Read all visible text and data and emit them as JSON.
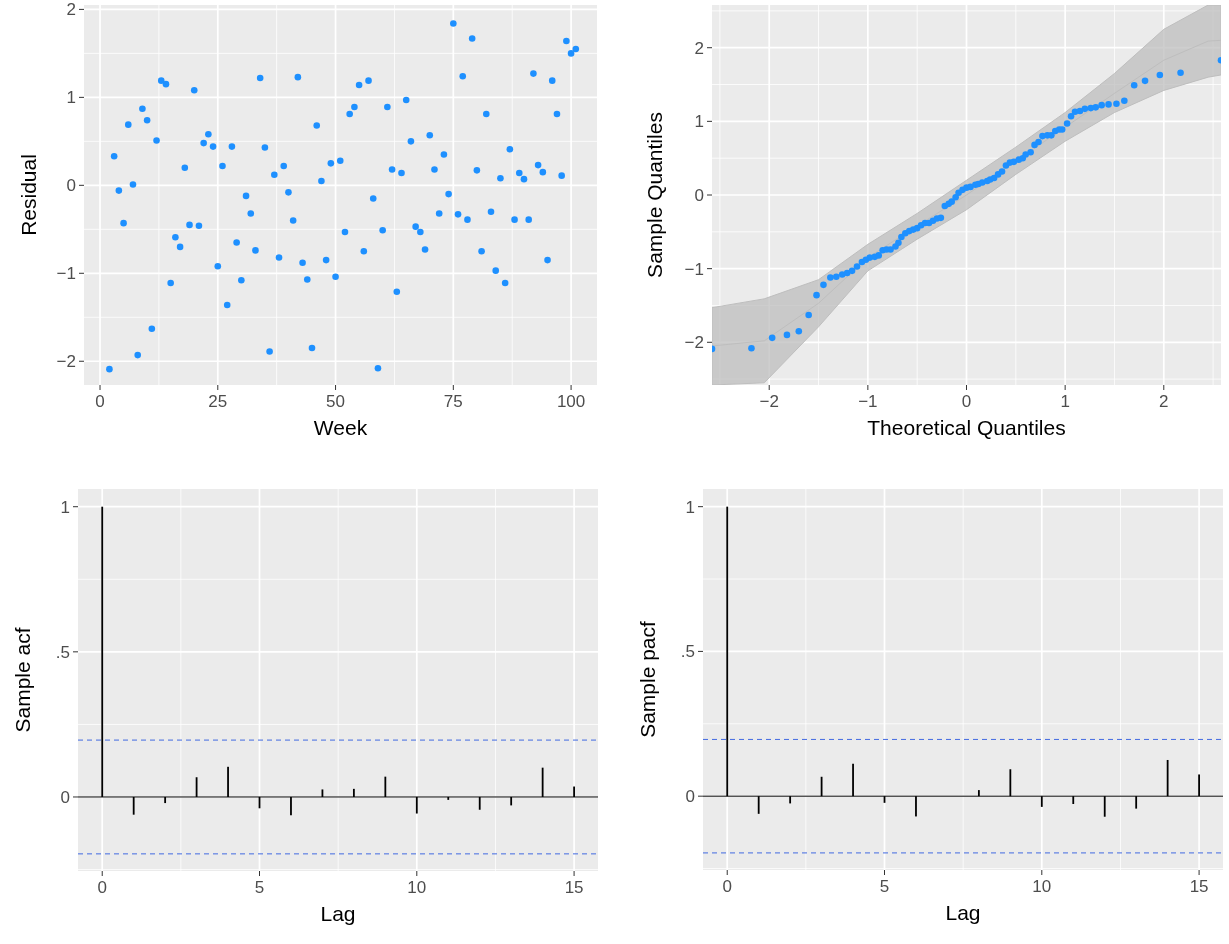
{
  "chart_data": [
    {
      "type": "scatter",
      "xlabel": "Week",
      "ylabel": "Residual",
      "xlim": [
        -3.4,
        105.5
      ],
      "ylim": [
        -2.27,
        2.05
      ],
      "xticks": [
        0,
        25,
        50,
        75,
        100
      ],
      "yticks": [
        {
          "value": -2,
          "label": "−2"
        },
        {
          "value": -1,
          "label": "−1"
        },
        0,
        1,
        2
      ],
      "grid": true,
      "marker": "circle",
      "color": "#1e90ff",
      "x": [
        2,
        3,
        4,
        5,
        6,
        7,
        8,
        9,
        10,
        11,
        12,
        13,
        14,
        15,
        16,
        17,
        18,
        19,
        20,
        21,
        22,
        23,
        24,
        25,
        26,
        27,
        28,
        29,
        30,
        31,
        32,
        33,
        34,
        35,
        36,
        37,
        38,
        39,
        40,
        41,
        42,
        43,
        44,
        45,
        46,
        47,
        48,
        49,
        50,
        51,
        52,
        53,
        54,
        55,
        56,
        57,
        58,
        59,
        60,
        61,
        62,
        63,
        64,
        65,
        66,
        67,
        68,
        69,
        70,
        71,
        72,
        73,
        74,
        75,
        76,
        77,
        78,
        79,
        80,
        81,
        82,
        83,
        84,
        85,
        86,
        87,
        88,
        89,
        90,
        91,
        92,
        93,
        94,
        95,
        96,
        97,
        98,
        99,
        100,
        101
      ],
      "values": [
        -2.09,
        0.33,
        -0.06,
        -0.43,
        0.69,
        0.01,
        -1.93,
        0.87,
        0.74,
        -1.63,
        0.51,
        1.19,
        1.15,
        -1.11,
        -0.59,
        -0.7,
        0.2,
        -0.45,
        1.08,
        -0.46,
        0.48,
        0.58,
        0.44,
        -0.92,
        0.22,
        -1.36,
        0.44,
        -0.65,
        -1.08,
        -0.12,
        -0.32,
        -0.74,
        1.22,
        0.43,
        -1.89,
        0.12,
        -0.82,
        0.22,
        -0.08,
        -0.4,
        1.23,
        -0.88,
        -1.07,
        -1.85,
        0.68,
        0.05,
        -0.85,
        0.25,
        -1.04,
        0.28,
        -0.53,
        0.81,
        0.89,
        1.14,
        -0.75,
        1.19,
        -0.15,
        -2.08,
        -0.51,
        0.89,
        0.18,
        -1.21,
        0.14,
        0.97,
        0.5,
        -0.47,
        -0.53,
        -0.73,
        0.57,
        0.18,
        -0.32,
        0.35,
        -0.1,
        1.84,
        -0.33,
        1.24,
        -0.39,
        1.67,
        0.17,
        -0.75,
        0.81,
        -0.3,
        -0.97,
        0.08,
        -1.11,
        0.41,
        -0.39,
        0.14,
        0.07,
        -0.39,
        1.27,
        0.23,
        0.15,
        -0.85,
        1.19,
        0.81,
        0.11,
        1.64,
        1.5,
        1.55
      ]
    },
    {
      "type": "scatter",
      "xlabel": "Theoretical Quantiles",
      "ylabel": "Sample Quantiles",
      "xlim": [
        -2.58,
        2.58
      ],
      "ylim": [
        -2.58,
        2.58
      ],
      "xticks": [
        {
          "value": -2,
          "label": "−2"
        },
        {
          "value": -1,
          "label": "−1"
        },
        0,
        1,
        2
      ],
      "yticks": [
        {
          "value": -2,
          "label": "−2"
        },
        {
          "value": -1,
          "label": "−1"
        },
        0,
        1,
        2
      ],
      "grid": true,
      "marker": "circle",
      "series": [
        {
          "type": "line",
          "marker": "none",
          "color": "#bebebe",
          "x": [
            -2.58,
            -2.05,
            -1.5,
            -1,
            -0.5,
            0,
            0.5,
            1,
            1.5,
            2,
            2.45,
            2.58
          ],
          "values": [
            -2.05,
            -1.98,
            -1.47,
            -0.85,
            -0.42,
            0,
            0.46,
            0.92,
            1.38,
            1.83,
            2.09,
            2.1
          ],
          "lower": [
            -2.58,
            -2.55,
            -1.79,
            -1.03,
            -0.6,
            -0.2,
            0.28,
            0.73,
            1.12,
            1.42,
            1.6,
            1.63
          ],
          "upper": [
            -1.53,
            -1.41,
            -1.15,
            -0.67,
            -0.25,
            0.2,
            0.65,
            1.12,
            1.65,
            2.25,
            2.58,
            2.58
          ]
        },
        {
          "color": "#1e90ff",
          "x": [
            -2.58,
            -2.18,
            -1.97,
            -1.82,
            -1.7,
            -1.6,
            -1.52,
            -1.45,
            -1.38,
            -1.32,
            -1.26,
            -1.21,
            -1.16,
            -1.11,
            -1.06,
            -1.02,
            -0.98,
            -0.93,
            -0.89,
            -0.85,
            -0.81,
            -0.77,
            -0.72,
            -0.69,
            -0.66,
            -0.62,
            -0.58,
            -0.54,
            -0.5,
            -0.46,
            -0.42,
            -0.38,
            -0.34,
            -0.3,
            -0.26,
            -0.22,
            -0.18,
            -0.15,
            -0.11,
            -0.08,
            -0.04,
            0,
            0.04,
            0.09,
            0.12,
            0.16,
            0.21,
            0.24,
            0.28,
            0.32,
            0.36,
            0.4,
            0.44,
            0.48,
            0.53,
            0.57,
            0.6,
            0.65,
            0.69,
            0.73,
            0.77,
            0.82,
            0.86,
            0.9,
            0.94,
            0.97,
            1.02,
            1.06,
            1.1,
            1.15,
            1.2,
            1.26,
            1.31,
            1.37,
            1.44,
            1.52,
            1.6,
            1.7,
            1.81,
            1.96,
            2.17,
            2.58
          ],
          "values": [
            -2.09,
            -2.08,
            -1.94,
            -1.9,
            -1.85,
            -1.63,
            -1.36,
            -1.22,
            -1.12,
            -1.11,
            -1.08,
            -1.06,
            -1.03,
            -0.97,
            -0.91,
            -0.88,
            -0.85,
            -0.84,
            -0.82,
            -0.75,
            -0.74,
            -0.74,
            -0.7,
            -0.65,
            -0.57,
            -0.52,
            -0.49,
            -0.47,
            -0.45,
            -0.41,
            -0.38,
            -0.38,
            -0.35,
            -0.32,
            -0.31,
            -0.15,
            -0.12,
            -0.09,
            -0.03,
            0.03,
            0.07,
            0.1,
            0.11,
            0.14,
            0.15,
            0.17,
            0.19,
            0.21,
            0.23,
            0.28,
            0.32,
            0.4,
            0.44,
            0.45,
            0.48,
            0.5,
            0.55,
            0.58,
            0.68,
            0.72,
            0.8,
            0.81,
            0.81,
            0.87,
            0.89,
            0.89,
            0.97,
            1.07,
            1.13,
            1.14,
            1.17,
            1.18,
            1.19,
            1.22,
            1.23,
            1.24,
            1.28,
            1.49,
            1.55,
            1.63,
            1.66,
            1.83
          ]
        }
      ]
    },
    {
      "type": "bar",
      "xlabel": "Lag",
      "ylabel": "Sample acf",
      "xlim": [
        -0.77,
        15.76
      ],
      "ylim": [
        -0.255,
        1.061
      ],
      "xticks": [
        0,
        5,
        10,
        15
      ],
      "yticks": [
        0,
        {
          "value": 0.5,
          "label": ".5"
        },
        1
      ],
      "grid": true,
      "color": "#000000",
      "x": [
        0,
        1,
        2,
        3,
        4,
        5,
        6,
        7,
        8,
        9,
        10,
        11,
        12,
        13,
        14,
        15
      ],
      "values": [
        1,
        -0.061,
        -0.021,
        0.068,
        0.104,
        -0.039,
        -0.063,
        0.026,
        0.028,
        0.07,
        -0.057,
        -0.01,
        -0.044,
        -0.029,
        0.101,
        0.036
      ],
      "ref_lines": [
        {
          "axis": "y",
          "value": 0,
          "color": "#000000",
          "line_style": "solid"
        },
        {
          "axis": "y",
          "value": 0.196,
          "color": "#4169e1",
          "line_style": "dashed"
        },
        {
          "axis": "y",
          "value": -0.196,
          "color": "#4169e1",
          "line_style": "dashed"
        }
      ]
    },
    {
      "type": "bar",
      "xlabel": "Lag",
      "ylabel": "Sample pacf",
      "xlim": [
        -0.77,
        15.76
      ],
      "ylim": [
        -0.255,
        1.061
      ],
      "xticks": [
        0,
        5,
        10,
        15
      ],
      "yticks": [
        0,
        {
          "value": 0.5,
          "label": ".5"
        },
        1
      ],
      "grid": true,
      "color": "#000000",
      "x": [
        0,
        1,
        2,
        3,
        4,
        5,
        6,
        7,
        8,
        9,
        10,
        11,
        12,
        13,
        14,
        15
      ],
      "values": [
        1,
        -0.061,
        -0.025,
        0.067,
        0.112,
        -0.023,
        -0.07,
        0,
        0.021,
        0.093,
        -0.037,
        -0.027,
        -0.071,
        -0.043,
        0.125,
        0.075
      ],
      "ref_lines": [
        {
          "axis": "y",
          "value": 0,
          "color": "#000000",
          "line_style": "solid"
        },
        {
          "axis": "y",
          "value": 0.196,
          "color": "#4169e1",
          "line_style": "dashed"
        },
        {
          "axis": "y",
          "value": -0.196,
          "color": "#4169e1",
          "line_style": "dashed"
        }
      ]
    }
  ]
}
